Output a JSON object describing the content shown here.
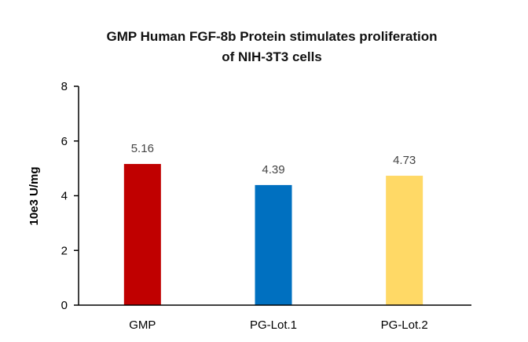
{
  "chart_data": {
    "type": "bar",
    "title_lines": [
      "GMP Human FGF-8b Protein stimulates proliferation",
      "of NIH-3T3 cells"
    ],
    "xlabel": "",
    "ylabel": "10e3 U/mg",
    "ylim": [
      0,
      8
    ],
    "yticks": [
      0,
      2,
      4,
      6,
      8
    ],
    "categories": [
      "GMP",
      "PG-Lot.1",
      "PG-Lot.2"
    ],
    "values": [
      5.16,
      4.39,
      4.73
    ],
    "data_labels": [
      "5.16",
      "4.39",
      "4.73"
    ],
    "colors": [
      "#c00000",
      "#0070c0",
      "#ffd966"
    ],
    "grid": false,
    "legend": "none"
  }
}
